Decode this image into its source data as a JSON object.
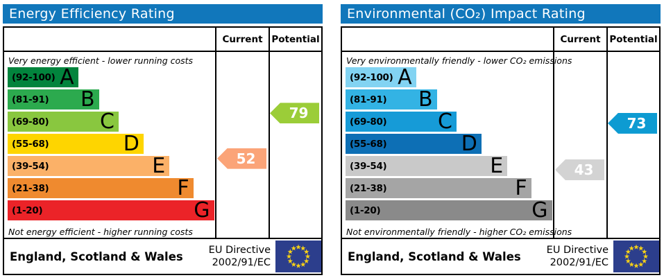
{
  "eu_flag": {
    "background": "#2c3e8c",
    "star_color": "#f7d117"
  },
  "header_bar_color": "#1177bb",
  "panels": [
    {
      "id": "energy-efficiency",
      "title": "Energy Efficiency Rating",
      "columns": {
        "current": "Current",
        "potential": "Potential"
      },
      "top_note": "Very energy efficient - lower running costs",
      "bottom_note": "Not energy efficient - higher running costs",
      "bands": [
        {
          "letter": "A",
          "range_label": "(92-100)",
          "min": 92,
          "max": 100,
          "color": "#02843d"
        },
        {
          "letter": "B",
          "range_label": "(81-91)",
          "min": 81,
          "max": 91,
          "color": "#2caa4e"
        },
        {
          "letter": "C",
          "range_label": "(69-80)",
          "min": 69,
          "max": 80,
          "color": "#89c73f"
        },
        {
          "letter": "D",
          "range_label": "(55-68)",
          "min": 55,
          "max": 68,
          "color": "#fed500"
        },
        {
          "letter": "E",
          "range_label": "(39-54)",
          "min": 39,
          "max": 54,
          "color": "#fbb168"
        },
        {
          "letter": "F",
          "range_label": "(21-38)",
          "min": 21,
          "max": 38,
          "color": "#ef8a2f"
        },
        {
          "letter": "G",
          "range_label": "(1-20)",
          "min": 1,
          "max": 20,
          "color": "#eb2328"
        }
      ],
      "current": {
        "value": 52,
        "color": "#fba478"
      },
      "potential": {
        "value": 79,
        "color": "#9bcd38"
      },
      "footer": {
        "region": "England, Scotland & Wales",
        "directive_line1": "EU Directive",
        "directive_line2": "2002/91/EC"
      }
    },
    {
      "id": "environmental-impact",
      "title": "Environmental (CO₂) Impact Rating",
      "columns": {
        "current": "Current",
        "potential": "Potential"
      },
      "top_note": "Very environmentally friendly - lower CO₂ emissions",
      "bottom_note": "Not environmentally friendly - higher CO₂ emissions",
      "bands": [
        {
          "letter": "A",
          "range_label": "(92-100)",
          "min": 92,
          "max": 100,
          "color": "#82d3f2"
        },
        {
          "letter": "B",
          "range_label": "(81-91)",
          "min": 81,
          "max": 91,
          "color": "#33b3e4"
        },
        {
          "letter": "C",
          "range_label": "(69-80)",
          "min": 69,
          "max": 80,
          "color": "#169bd7"
        },
        {
          "letter": "D",
          "range_label": "(55-68)",
          "min": 55,
          "max": 68,
          "color": "#0d6fb5"
        },
        {
          "letter": "E",
          "range_label": "(39-54)",
          "min": 39,
          "max": 54,
          "color": "#c9c9c9"
        },
        {
          "letter": "F",
          "range_label": "(21-38)",
          "min": 21,
          "max": 38,
          "color": "#a5a5a5"
        },
        {
          "letter": "G",
          "range_label": "(1-20)",
          "min": 1,
          "max": 20,
          "color": "#8a8a8a"
        }
      ],
      "current": {
        "value": 43,
        "color": "#d3d3d3"
      },
      "potential": {
        "value": 73,
        "color": "#0d9bd2"
      },
      "footer": {
        "region": "England, Scotland & Wales",
        "directive_line1": "EU Directive",
        "directive_line2": "2002/91/EC"
      }
    }
  ],
  "chart_data": [
    {
      "type": "bar",
      "title": "Energy Efficiency Rating",
      "categories": [
        "A (92-100)",
        "B (81-91)",
        "C (69-80)",
        "D (55-68)",
        "E (39-54)",
        "F (21-38)",
        "G (1-20)"
      ],
      "band_ranges": [
        [
          92,
          100
        ],
        [
          81,
          91
        ],
        [
          69,
          80
        ],
        [
          55,
          68
        ],
        [
          39,
          54
        ],
        [
          21,
          38
        ],
        [
          1,
          20
        ]
      ],
      "series": [
        {
          "name": "Current",
          "value": 52,
          "band": "E"
        },
        {
          "name": "Potential",
          "value": 79,
          "band": "C"
        }
      ],
      "value_range": [
        1,
        100
      ],
      "annotations": [
        "Very energy efficient - lower running costs",
        "Not energy efficient - higher running costs",
        "England, Scotland & Wales",
        "EU Directive 2002/91/EC"
      ]
    },
    {
      "type": "bar",
      "title": "Environmental (CO₂) Impact Rating",
      "categories": [
        "A (92-100)",
        "B (81-91)",
        "C (69-80)",
        "D (55-68)",
        "E (39-54)",
        "F (21-38)",
        "G (1-20)"
      ],
      "band_ranges": [
        [
          92,
          100
        ],
        [
          81,
          91
        ],
        [
          69,
          80
        ],
        [
          55,
          68
        ],
        [
          39,
          54
        ],
        [
          21,
          38
        ],
        [
          1,
          20
        ]
      ],
      "series": [
        {
          "name": "Current",
          "value": 43,
          "band": "E"
        },
        {
          "name": "Potential",
          "value": 73,
          "band": "C"
        }
      ],
      "value_range": [
        1,
        100
      ],
      "annotations": [
        "Very environmentally friendly - lower CO₂ emissions",
        "Not environmentally friendly - higher CO₂ emissions",
        "England, Scotland & Wales",
        "EU Directive 2002/91/EC"
      ]
    }
  ]
}
